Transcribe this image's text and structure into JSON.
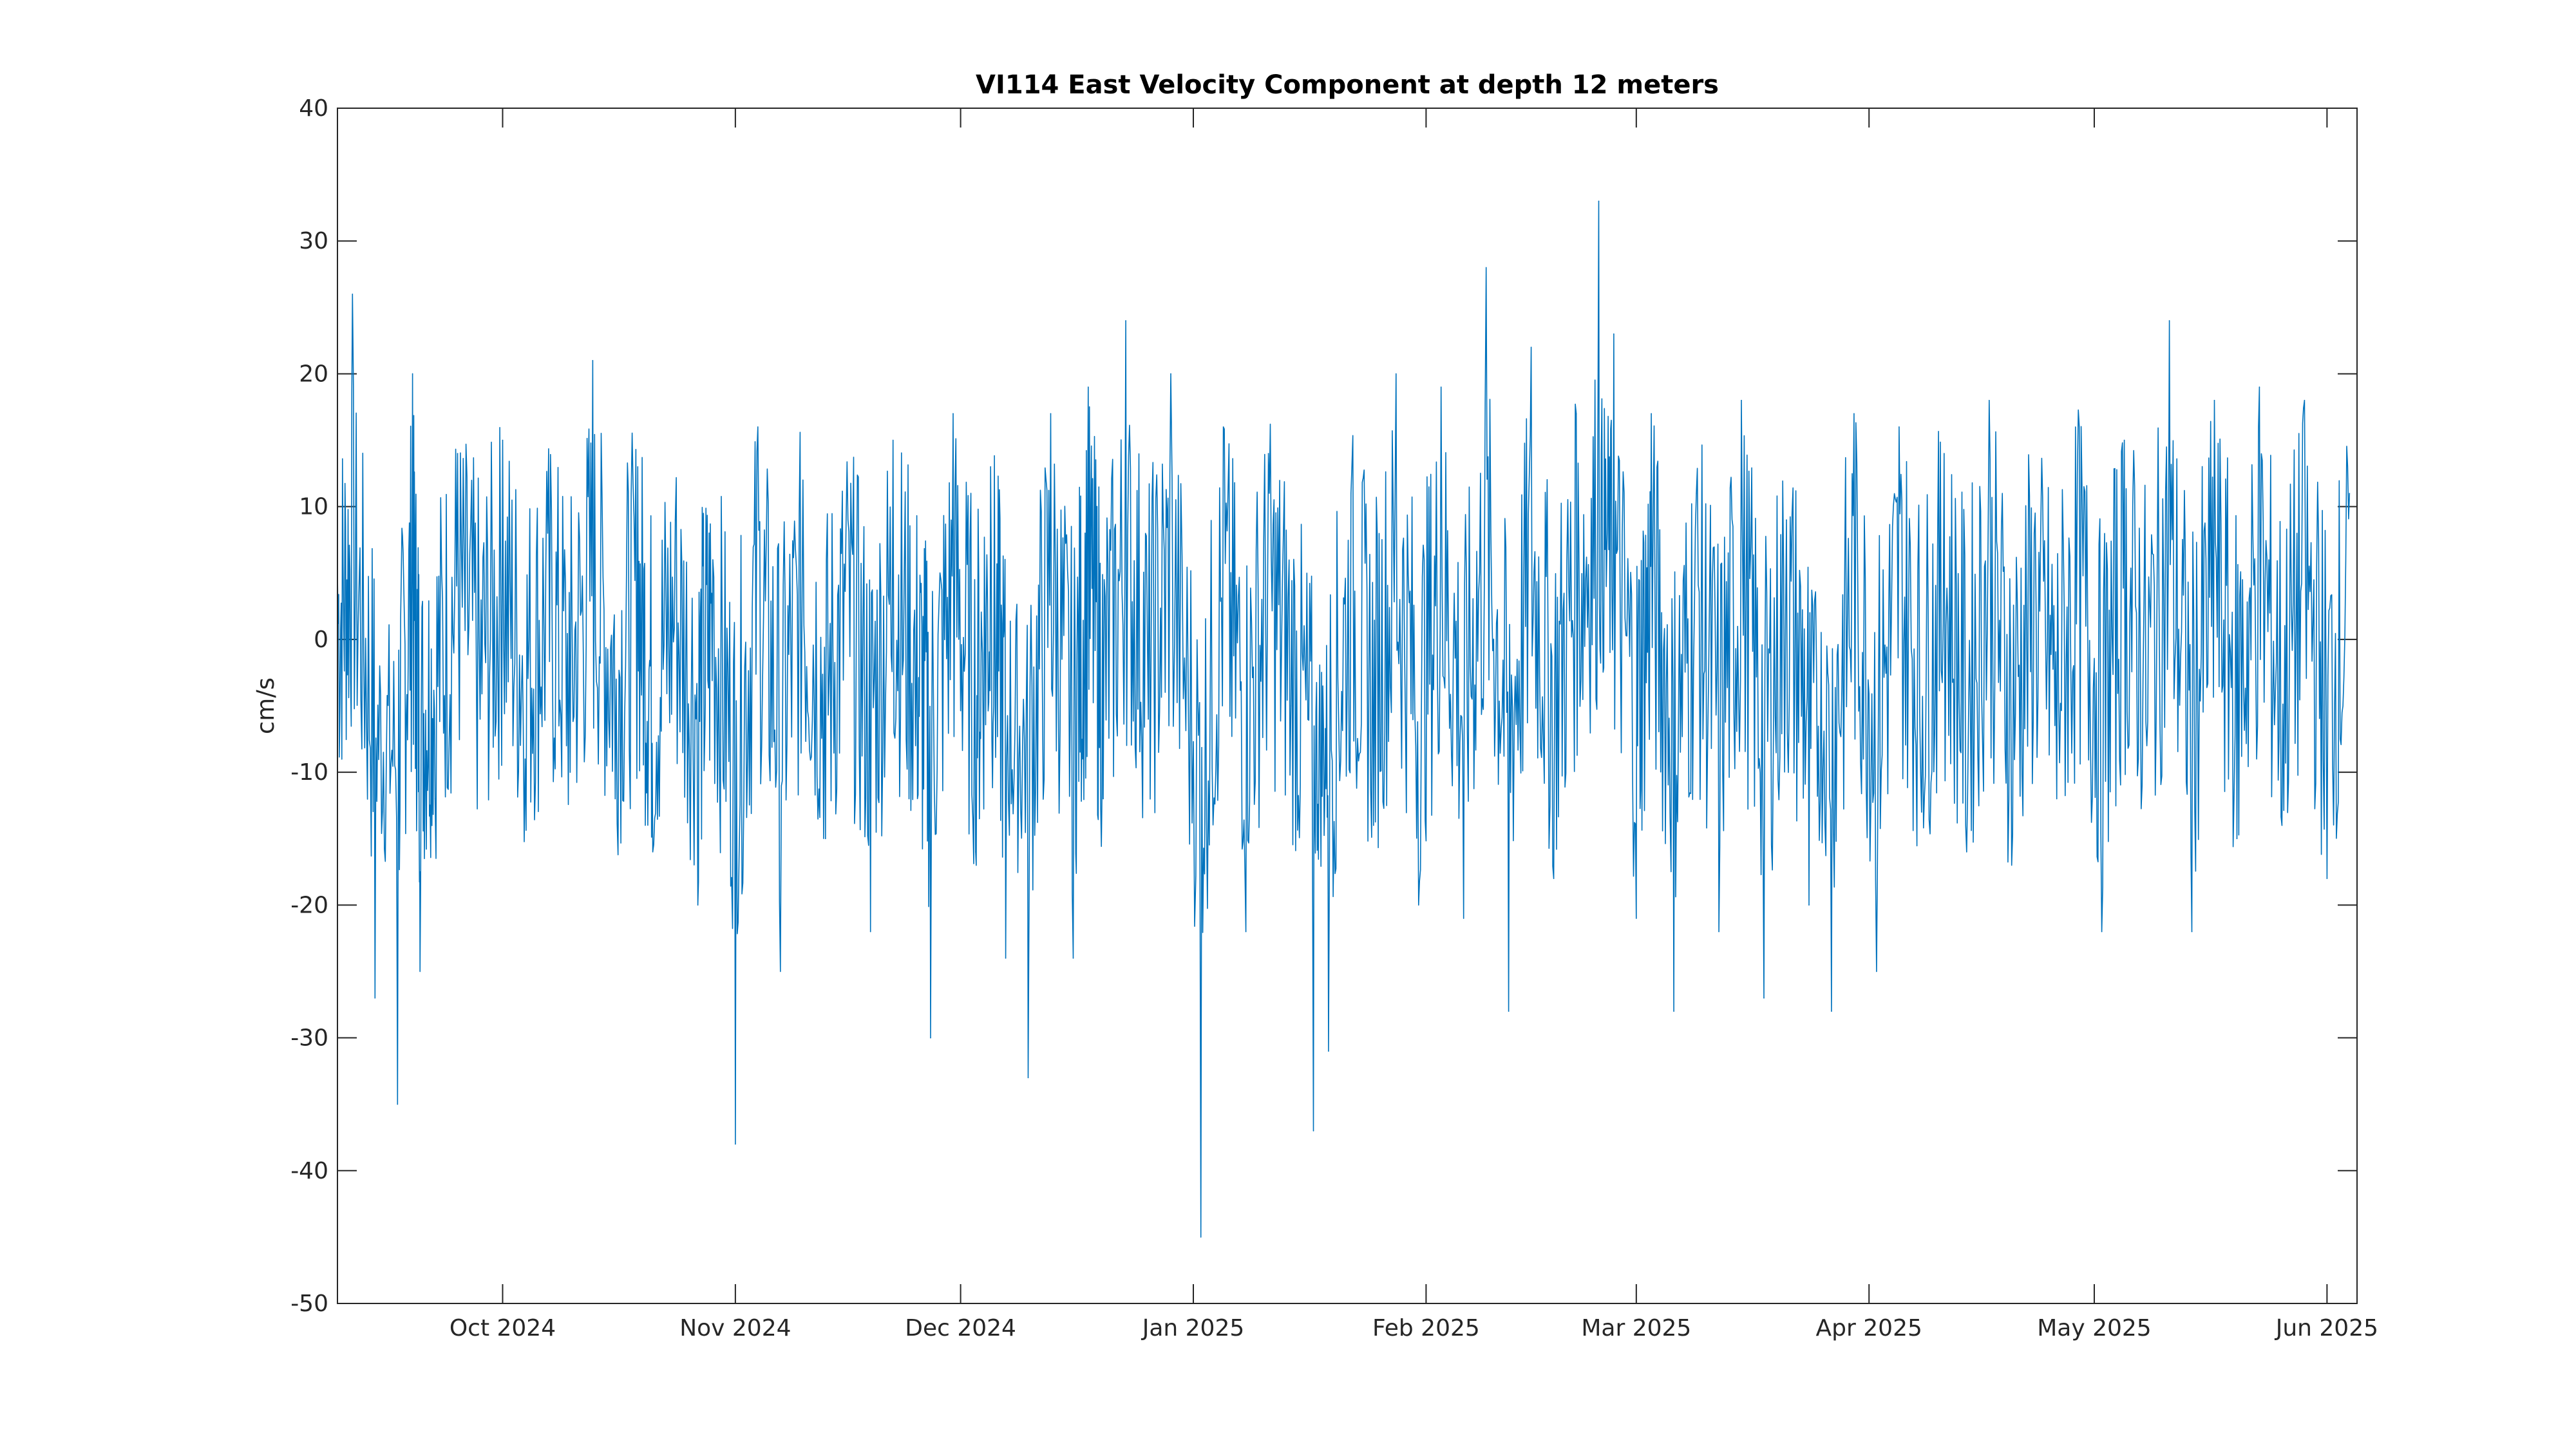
{
  "chart_data": {
    "type": "line",
    "title": "VI114 East Velocity Component at depth 12 meters",
    "xlabel": "",
    "ylabel": "cm/s",
    "xlim": [
      "2024-09-09",
      "2025-06-05"
    ],
    "ylim": [
      -50,
      40
    ],
    "grid": false,
    "legend": "none",
    "x_ticks": [
      {
        "date": "2024-10-01",
        "label": "Oct 2024"
      },
      {
        "date": "2024-11-01",
        "label": "Nov 2024"
      },
      {
        "date": "2024-12-01",
        "label": "Dec 2024"
      },
      {
        "date": "2025-01-01",
        "label": "Jan 2025"
      },
      {
        "date": "2025-02-01",
        "label": "Feb 2025"
      },
      {
        "date": "2025-03-01",
        "label": "Mar 2025"
      },
      {
        "date": "2025-04-01",
        "label": "Apr 2025"
      },
      {
        "date": "2025-05-01",
        "label": "May 2025"
      },
      {
        "date": "2025-06-01",
        "label": "Jun 2025"
      }
    ],
    "y_ticks": [
      {
        "value": 40,
        "label": "40"
      },
      {
        "value": 30,
        "label": "30"
      },
      {
        "value": 20,
        "label": "20"
      },
      {
        "value": 10,
        "label": "10"
      },
      {
        "value": 0,
        "label": "0"
      },
      {
        "value": -10,
        "label": "-10"
      },
      {
        "value": -20,
        "label": "-20"
      },
      {
        "value": -30,
        "label": "-30"
      },
      {
        "value": -40,
        "label": "-40"
      },
      {
        "value": -50,
        "label": "-50"
      }
    ],
    "series_color": "#0072BD",
    "series": [
      {
        "x": [
          "2024-09-09",
          "2024-09-11",
          "2024-09-14",
          "2024-09-17",
          "2024-09-19",
          "2024-09-20",
          "2024-09-22",
          "2024-09-25",
          "2024-09-28",
          "2024-10-01",
          "2024-10-04",
          "2024-10-07",
          "2024-10-10",
          "2024-10-13",
          "2024-10-16",
          "2024-10-19",
          "2024-10-21",
          "2024-10-24",
          "2024-10-27",
          "2024-10-29",
          "2024-11-01",
          "2024-11-04",
          "2024-11-07",
          "2024-11-10",
          "2024-11-13",
          "2024-11-16",
          "2024-11-19",
          "2024-11-22",
          "2024-11-25",
          "2024-11-27",
          "2024-11-30",
          "2024-12-03",
          "2024-12-05",
          "2024-12-07",
          "2024-12-10",
          "2024-12-13",
          "2024-12-16",
          "2024-12-18",
          "2024-12-20",
          "2024-12-23",
          "2024-12-26",
          "2024-12-29",
          "2025-01-02",
          "2025-01-05",
          "2025-01-08",
          "2025-01-11",
          "2025-01-14",
          "2025-01-17",
          "2025-01-19",
          "2025-01-22",
          "2025-01-25",
          "2025-01-28",
          "2025-01-31",
          "2025-02-03",
          "2025-02-06",
          "2025-02-09",
          "2025-02-12",
          "2025-02-15",
          "2025-02-18",
          "2025-02-21",
          "2025-02-24",
          "2025-02-26",
          "2025-03-01",
          "2025-03-03",
          "2025-03-06",
          "2025-03-09",
          "2025-03-12",
          "2025-03-15",
          "2025-03-18",
          "2025-03-21",
          "2025-03-24",
          "2025-03-27",
          "2025-03-30",
          "2025-04-02",
          "2025-04-05",
          "2025-04-08",
          "2025-04-11",
          "2025-04-14",
          "2025-04-17",
          "2025-04-20",
          "2025-04-23",
          "2025-04-26",
          "2025-04-29",
          "2025-05-02",
          "2025-05-05",
          "2025-05-08",
          "2025-05-11",
          "2025-05-14",
          "2025-05-17",
          "2025-05-20",
          "2025-05-23",
          "2025-05-26",
          "2025-05-29",
          "2025-06-01",
          "2025-06-04"
        ],
        "y": [
          5,
          26,
          -27,
          -35,
          20,
          -25,
          -12,
          14,
          -6,
          15,
          -9,
          8,
          -10,
          21,
          -12,
          13,
          -16,
          9,
          -20,
          6,
          -38,
          16,
          -25,
          12,
          -15,
          9,
          -22,
          15,
          -8,
          -30,
          17,
          -16,
          13,
          -24,
          -33,
          17,
          -24,
          19,
          -12,
          24,
          -6,
          20,
          -45,
          16,
          -22,
          14,
          -5,
          -37,
          -31,
          11,
          -14,
          20,
          -20,
          19,
          -21,
          28,
          -28,
          22,
          -18,
          17,
          33,
          23,
          -21,
          17,
          -28,
          11,
          -22,
          18,
          -27,
          9,
          -20,
          -28,
          17,
          -25,
          16,
          -13,
          14,
          -16,
          18,
          -17,
          8,
          -12,
          16,
          -22,
          15,
          -8,
          24,
          -22,
          18,
          -15,
          19,
          -14,
          18,
          -18,
          11
        ]
      }
    ]
  }
}
